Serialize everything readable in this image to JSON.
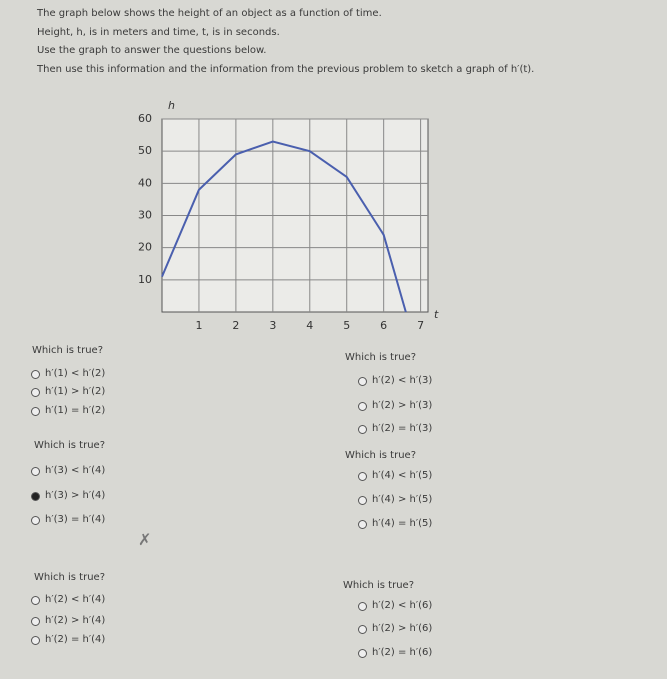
{
  "intro": [
    "The graph below shows the height of an object as a function of time.",
    "Height, h, is in meters and time, t, is in seconds.",
    "Use the graph to answer the questions below.",
    "Then use this information and the information from the previous problem to sketch a graph of h′(t)."
  ],
  "graph": {
    "type": "line",
    "x_label": "t",
    "y_label": "h",
    "x": [
      0,
      1,
      2,
      3,
      4,
      5,
      6,
      6.6
    ],
    "values": [
      11,
      38,
      49,
      53,
      50,
      42,
      24,
      0
    ],
    "color": "#4a5fae",
    "xlim": [
      0,
      7.2
    ],
    "ylim": [
      0,
      60
    ],
    "xticks": [
      1,
      2,
      3,
      4,
      5,
      6,
      7
    ],
    "yticks": [
      10,
      20,
      30,
      40,
      50,
      60
    ],
    "grid": true
  },
  "questions": [
    {
      "prompt": "Which is true?",
      "options": [
        "h′(1) < h′(2)",
        "h′(1) > h′(2)",
        "h′(1) = h′(2)"
      ]
    },
    {
      "prompt": "Which is true?",
      "options": [
        "h′(2) < h′(3)",
        "h′(2) > h′(3)",
        "h′(2) = h′(3)"
      ]
    },
    {
      "prompt": "Which is true?",
      "options": [
        "h′(3) < h′(4)",
        "h′(3) > h′(4)",
        "h′(3) = h′(4)"
      ],
      "selected": 1,
      "feedback": "✗"
    },
    {
      "prompt": "Which is true?",
      "options": [
        "h′(4) < h′(5)",
        "h′(4) > h′(5)",
        "h′(4) = h′(5)"
      ]
    },
    {
      "prompt": "Which is true?",
      "options": [
        "h′(2) < h′(4)",
        "h′(2) > h′(4)",
        "h′(2) = h′(4)"
      ]
    },
    {
      "prompt": "Which is true?",
      "options": [
        "h′(2) < h′(6)",
        "h′(2) > h′(6)",
        "h′(2) = h′(6)"
      ]
    }
  ]
}
